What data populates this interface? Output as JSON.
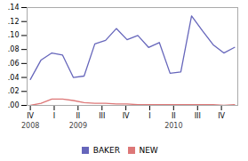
{
  "chart_data": {
    "type": "line",
    "x": [
      0,
      1,
      2,
      3,
      4,
      5,
      6,
      7,
      8,
      9,
      10,
      11,
      12,
      13,
      14,
      15,
      16,
      17,
      18,
      19
    ],
    "series": [
      {
        "name": "BAKER",
        "color": "#6666bb",
        "values": [
          0.037,
          0.065,
          0.075,
          0.072,
          0.04,
          0.042,
          0.088,
          0.093,
          0.11,
          0.094,
          0.1,
          0.083,
          0.09,
          0.046,
          0.048,
          0.128,
          0.107,
          0.087,
          0.075,
          0.083
        ]
      },
      {
        "name": "NEW",
        "color": "#dd7777",
        "values": [
          0.0,
          0.003,
          0.009,
          0.009,
          0.007,
          0.004,
          0.003,
          0.003,
          0.002,
          0.002,
          0.001,
          0.001,
          0.001,
          0.001,
          0.001,
          0.001,
          0.001,
          0.001,
          0.0,
          0.001
        ]
      }
    ],
    "xlim": [
      -0.3,
      19.3
    ],
    "xticks": [
      {
        "value": 0,
        "label": "IV"
      },
      {
        "value": 2.22,
        "label": "I"
      },
      {
        "value": 4.44,
        "label": "II"
      },
      {
        "value": 6.67,
        "label": "III"
      },
      {
        "value": 8.89,
        "label": "IV"
      },
      {
        "value": 11.11,
        "label": "I"
      },
      {
        "value": 13.33,
        "label": "II"
      },
      {
        "value": 15.56,
        "label": "III"
      },
      {
        "value": 17.78,
        "label": "IV"
      }
    ],
    "ylim": [
      0,
      0.14
    ],
    "yticks": [
      {
        "value": 0.0,
        "label": ".00"
      },
      {
        "value": 0.02,
        "label": ".02"
      },
      {
        "value": 0.04,
        "label": ".04"
      },
      {
        "value": 0.06,
        "label": ".06"
      },
      {
        "value": 0.08,
        "label": ".08"
      },
      {
        "value": 0.1,
        "label": ".10"
      },
      {
        "value": 0.12,
        "label": ".12"
      },
      {
        "value": 0.14,
        "label": ".14"
      }
    ],
    "annotations": [
      {
        "text": "2008",
        "x": 0
      },
      {
        "text": "2009",
        "x": 4.44
      },
      {
        "text": "2010",
        "x": 13.33
      }
    ],
    "legend": "bottom",
    "grid": false
  }
}
